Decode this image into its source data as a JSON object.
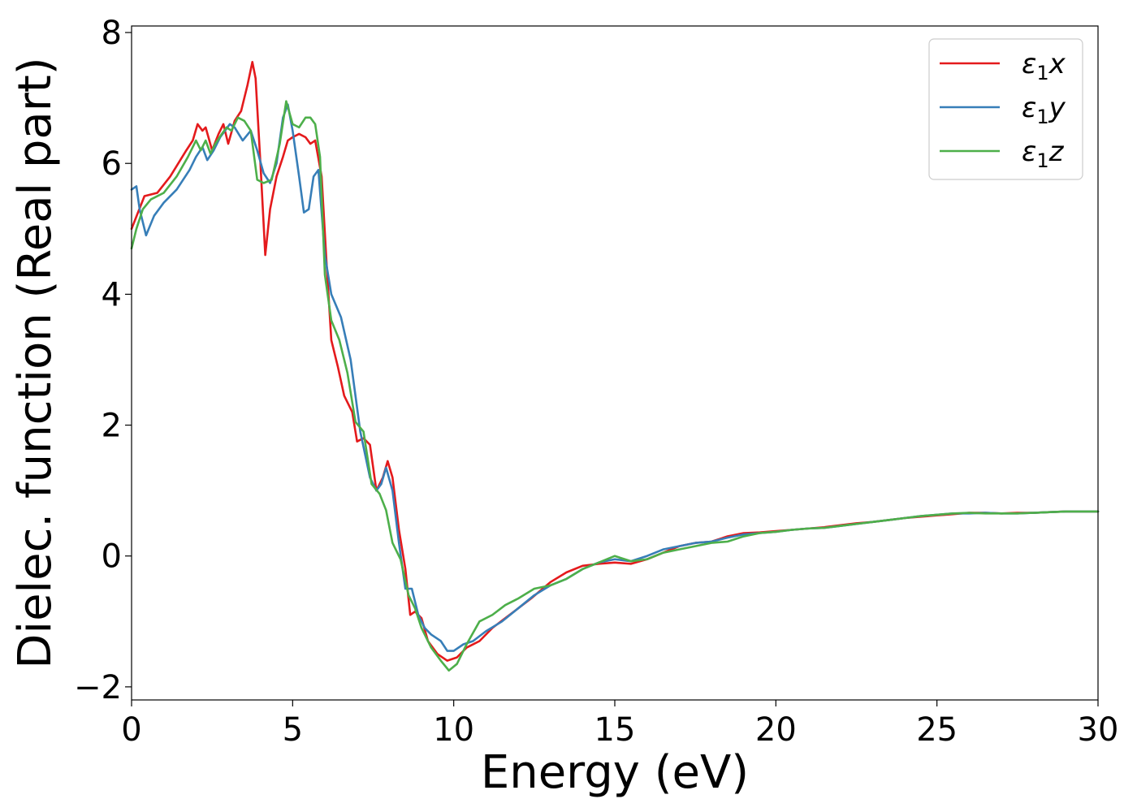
{
  "chart_data": {
    "type": "line",
    "title": "",
    "xlabel": "Energy (eV)",
    "ylabel": "Dielec. function (Real part)",
    "xlim": [
      0,
      30
    ],
    "ylim": [
      -2.2,
      8.1
    ],
    "xticks": [
      0,
      5,
      10,
      15,
      20,
      25,
      30
    ],
    "xtick_labels": [
      "0",
      "5",
      "10",
      "15",
      "20",
      "25",
      "30"
    ],
    "yticks": [
      -2,
      0,
      2,
      4,
      6,
      8
    ],
    "ytick_labels": [
      "−2",
      "0",
      "2",
      "4",
      "6",
      "8"
    ],
    "grid": false,
    "legend_position": "top-right",
    "series": [
      {
        "name": "ε₁x",
        "legend_base": "ε",
        "legend_sub": "1",
        "legend_var": "x",
        "color": "#e41a1c",
        "x": [
          0,
          0.2,
          0.4,
          0.8,
          1.2,
          1.7,
          1.9,
          2.05,
          2.2,
          2.3,
          2.5,
          2.7,
          2.85,
          3.0,
          3.2,
          3.4,
          3.6,
          3.75,
          3.85,
          4.0,
          4.15,
          4.3,
          4.5,
          4.7,
          4.85,
          5.0,
          5.2,
          5.4,
          5.55,
          5.7,
          5.9,
          6.05,
          6.2,
          6.4,
          6.6,
          6.85,
          7.0,
          7.2,
          7.4,
          7.6,
          7.8,
          7.95,
          8.1,
          8.3,
          8.5,
          8.65,
          8.8,
          9.0,
          9.2,
          9.5,
          9.8,
          10.1,
          10.4,
          10.8,
          11.2,
          11.6,
          12.0,
          12.4,
          13.0,
          13.5,
          14.0,
          14.5,
          15.0,
          15.5,
          16.0,
          16.5,
          17.0,
          17.5,
          18.0,
          18.5,
          19.0,
          19.5,
          20.0,
          20.5,
          21.0,
          21.5,
          22.0,
          22.5,
          23.0,
          23.5,
          24.0,
          24.5,
          25.0,
          25.5,
          26.0,
          26.5,
          27.0,
          27.5,
          28.0,
          28.5,
          29.0,
          29.5,
          30.0
        ],
        "y": [
          5.0,
          5.25,
          5.5,
          5.55,
          5.8,
          6.2,
          6.35,
          6.6,
          6.5,
          6.55,
          6.2,
          6.45,
          6.6,
          6.3,
          6.65,
          6.8,
          7.2,
          7.55,
          7.3,
          6.0,
          4.6,
          5.3,
          5.8,
          6.1,
          6.35,
          6.4,
          6.45,
          6.4,
          6.3,
          6.35,
          5.8,
          4.5,
          3.3,
          2.9,
          2.45,
          2.2,
          1.75,
          1.8,
          1.7,
          1.0,
          1.2,
          1.45,
          1.2,
          0.4,
          -0.2,
          -0.9,
          -0.85,
          -0.95,
          -1.3,
          -1.5,
          -1.6,
          -1.55,
          -1.4,
          -1.3,
          -1.1,
          -0.95,
          -0.8,
          -0.65,
          -0.4,
          -0.25,
          -0.15,
          -0.12,
          -0.1,
          -0.12,
          -0.05,
          0.05,
          0.15,
          0.2,
          0.22,
          0.3,
          0.35,
          0.36,
          0.38,
          0.4,
          0.42,
          0.44,
          0.47,
          0.5,
          0.52,
          0.55,
          0.58,
          0.6,
          0.62,
          0.64,
          0.66,
          0.66,
          0.65,
          0.66,
          0.66,
          0.67,
          0.68,
          0.68,
          0.68
        ]
      },
      {
        "name": "ε₁y",
        "legend_base": "ε",
        "legend_sub": "1",
        "legend_var": "y",
        "color": "#377eb8",
        "x": [
          0,
          0.15,
          0.25,
          0.45,
          0.7,
          1.0,
          1.4,
          1.8,
          2.0,
          2.2,
          2.35,
          2.55,
          2.75,
          2.9,
          3.05,
          3.2,
          3.45,
          3.7,
          3.9,
          4.1,
          4.3,
          4.5,
          4.7,
          4.85,
          5.0,
          5.2,
          5.35,
          5.5,
          5.65,
          5.8,
          6.0,
          6.2,
          6.5,
          6.8,
          7.1,
          7.4,
          7.6,
          7.75,
          7.9,
          8.1,
          8.3,
          8.5,
          8.7,
          8.9,
          9.1,
          9.3,
          9.6,
          9.8,
          10.0,
          10.3,
          10.6,
          11.0,
          11.5,
          12.0,
          12.5,
          13.0,
          13.5,
          14.0,
          14.5,
          15.0,
          15.5,
          16.0,
          16.5,
          17.0,
          17.5,
          18.0,
          18.5,
          19.0,
          19.5,
          20.0,
          20.5,
          21.0,
          21.5,
          22.0,
          22.5,
          23.0,
          23.5,
          24.0,
          24.5,
          25.0,
          25.5,
          26.0,
          26.5,
          27.0,
          27.5,
          28.0,
          28.5,
          29.0,
          29.5,
          30.0
        ],
        "y": [
          5.6,
          5.65,
          5.3,
          4.9,
          5.2,
          5.4,
          5.6,
          5.9,
          6.1,
          6.25,
          6.05,
          6.2,
          6.4,
          6.5,
          6.6,
          6.55,
          6.35,
          6.5,
          6.2,
          5.85,
          5.7,
          6.0,
          6.7,
          6.9,
          6.5,
          5.8,
          5.25,
          5.3,
          5.8,
          5.9,
          4.6,
          4.0,
          3.65,
          3.0,
          1.9,
          1.2,
          1.0,
          1.1,
          1.35,
          1.0,
          0.2,
          -0.5,
          -0.5,
          -0.9,
          -1.1,
          -1.2,
          -1.3,
          -1.45,
          -1.45,
          -1.35,
          -1.3,
          -1.15,
          -1.0,
          -0.8,
          -0.6,
          -0.45,
          -0.35,
          -0.2,
          -0.1,
          -0.05,
          -0.08,
          0.0,
          0.1,
          0.15,
          0.2,
          0.22,
          0.28,
          0.33,
          0.35,
          0.37,
          0.4,
          0.42,
          0.43,
          0.46,
          0.49,
          0.52,
          0.55,
          0.58,
          0.61,
          0.63,
          0.65,
          0.65,
          0.66,
          0.65,
          0.65,
          0.66,
          0.67,
          0.68,
          0.68,
          0.68
        ]
      },
      {
        "name": "ε₁z",
        "legend_base": "ε",
        "legend_sub": "1",
        "legend_var": "z",
        "color": "#4daf4a",
        "x": [
          0,
          0.15,
          0.35,
          0.6,
          1.0,
          1.4,
          1.75,
          2.0,
          2.15,
          2.3,
          2.45,
          2.6,
          2.8,
          2.95,
          3.1,
          3.3,
          3.5,
          3.7,
          3.9,
          4.1,
          4.35,
          4.6,
          4.8,
          5.0,
          5.2,
          5.4,
          5.55,
          5.7,
          5.85,
          6.0,
          6.2,
          6.45,
          6.7,
          6.95,
          7.2,
          7.45,
          7.7,
          7.9,
          8.1,
          8.35,
          8.6,
          8.8,
          9.0,
          9.3,
          9.6,
          9.85,
          10.1,
          10.4,
          10.8,
          11.2,
          11.6,
          12.0,
          12.5,
          13.0,
          13.5,
          14.0,
          14.5,
          15.0,
          15.5,
          16.0,
          16.5,
          17.0,
          17.5,
          18.0,
          18.5,
          19.0,
          19.5,
          20.0,
          20.5,
          21.0,
          21.5,
          22.0,
          22.5,
          23.0,
          23.5,
          24.0,
          24.5,
          25.0,
          25.5,
          26.0,
          26.5,
          27.0,
          27.5,
          28.0,
          28.5,
          29.0,
          29.5,
          30.0
        ],
        "y": [
          4.7,
          5.0,
          5.3,
          5.45,
          5.55,
          5.8,
          6.1,
          6.35,
          6.2,
          6.35,
          6.15,
          6.3,
          6.45,
          6.55,
          6.5,
          6.7,
          6.65,
          6.5,
          5.75,
          5.7,
          5.75,
          6.3,
          6.95,
          6.6,
          6.55,
          6.7,
          6.7,
          6.6,
          6.1,
          4.3,
          3.6,
          3.3,
          2.8,
          2.05,
          1.9,
          1.1,
          0.95,
          0.7,
          0.2,
          -0.05,
          -0.6,
          -0.8,
          -1.1,
          -1.4,
          -1.6,
          -1.75,
          -1.65,
          -1.35,
          -1.0,
          -0.9,
          -0.75,
          -0.65,
          -0.5,
          -0.45,
          -0.35,
          -0.2,
          -0.1,
          0.0,
          -0.08,
          -0.05,
          0.05,
          0.1,
          0.15,
          0.2,
          0.22,
          0.3,
          0.35,
          0.37,
          0.4,
          0.42,
          0.43,
          0.46,
          0.49,
          0.52,
          0.55,
          0.58,
          0.61,
          0.63,
          0.65,
          0.66,
          0.65,
          0.65,
          0.65,
          0.66,
          0.67,
          0.68,
          0.68,
          0.68
        ]
      }
    ]
  }
}
